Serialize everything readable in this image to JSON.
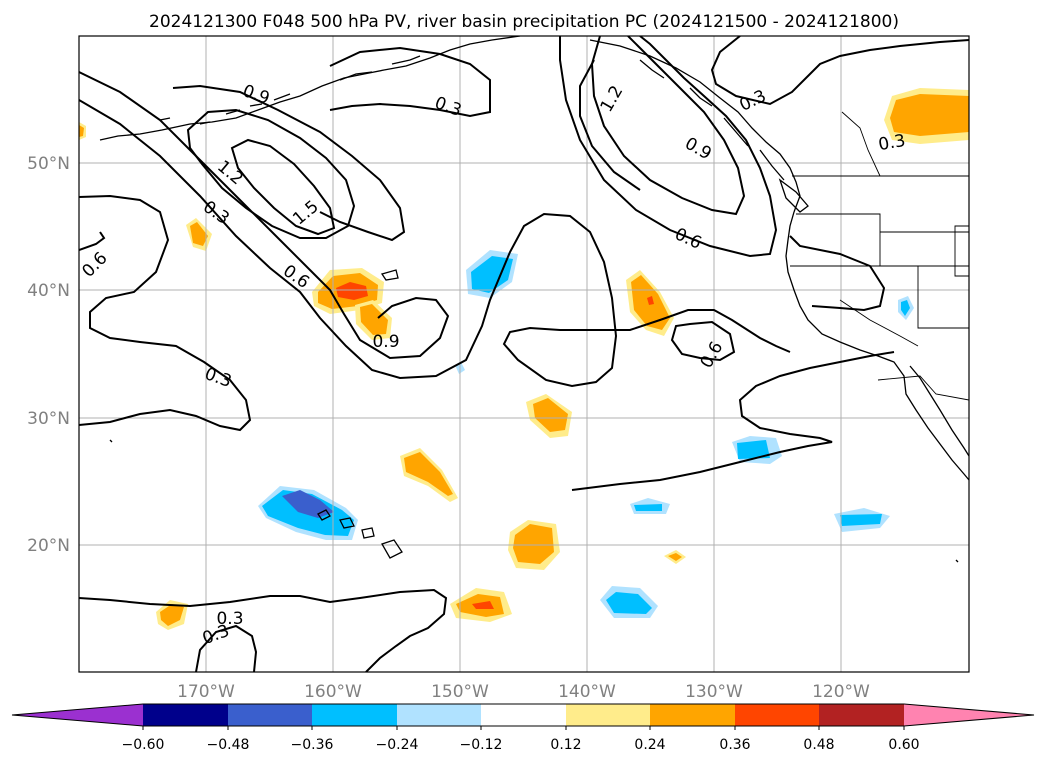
{
  "title": "2024121300 F048 500 hPa PV, river basin precipitation PC (2024121500 - 2024121800)",
  "map": {
    "projection": "PlateCarree",
    "lon_range": [
      -180,
      -110
    ],
    "lat_range": [
      10,
      60
    ],
    "gridlines": true,
    "lon_ticks": [
      "170°W",
      "160°W",
      "150°W",
      "140°W",
      "130°W",
      "120°W"
    ],
    "lat_ticks": [
      "50°N",
      "40°N",
      "30°N",
      "20°N"
    ]
  },
  "pv_contours": {
    "color": "#000000",
    "labels": [
      "0.3",
      "0.3",
      "0.3",
      "0.3",
      "0.3",
      "0.3",
      "0.3",
      "0.6",
      "0.6",
      "0.6",
      "0.6",
      "0.9",
      "0.9",
      "0.9",
      "1.2",
      "1.2",
      "1.5"
    ]
  },
  "colorbar": {
    "extend": "both",
    "colors": [
      "#9b30d0",
      "#00008b",
      "#3a5fcd",
      "#00bfff",
      "#b0e2ff",
      "#ffffff",
      "#ffec8b",
      "#ffa500",
      "#ff4500",
      "#b22222",
      "#ff83b0"
    ],
    "tick_labels": [
      "−0.60",
      "−0.48",
      "−0.36",
      "−0.24",
      "−0.12",
      "0.12",
      "0.24",
      "0.36",
      "0.48",
      "0.60"
    ]
  },
  "colors": {
    "grid": "#b0b0b0",
    "tick_text": "#808080"
  }
}
